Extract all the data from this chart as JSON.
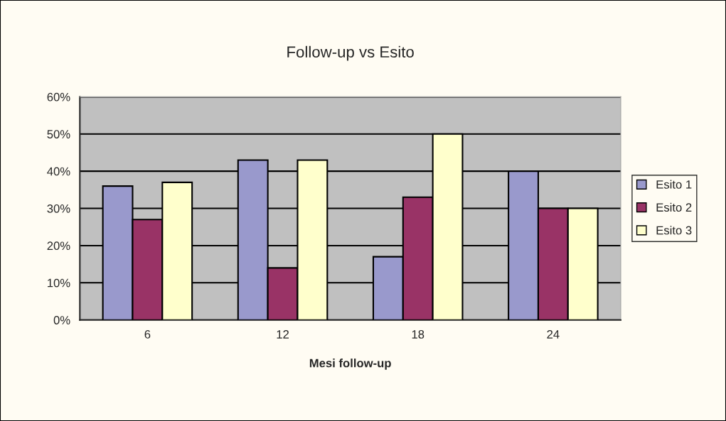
{
  "chart_data": {
    "type": "bar",
    "title": "Follow-up vs Esito",
    "xlabel": "Mesi follow-up",
    "categories": [
      "6",
      "12",
      "18",
      "24"
    ],
    "series": [
      {
        "name": "Esito 1",
        "color": "#9999cc",
        "values": [
          36,
          43,
          17,
          40
        ]
      },
      {
        "name": "Esito 2",
        "color": "#993366",
        "values": [
          27,
          14,
          33,
          30
        ]
      },
      {
        "name": "Esito 3",
        "color": "#ffffcc",
        "values": [
          37,
          43,
          50,
          30
        ]
      }
    ],
    "ylim": [
      0,
      60
    ],
    "yticks": [
      {
        "value": 0,
        "label": "0%"
      },
      {
        "value": 10,
        "label": "10%"
      },
      {
        "value": 20,
        "label": "20%"
      },
      {
        "value": 30,
        "label": "30%"
      },
      {
        "value": 40,
        "label": "40%"
      },
      {
        "value": 50,
        "label": "50%"
      },
      {
        "value": 60,
        "label": "60%"
      }
    ],
    "grid": "y",
    "legend": "right"
  }
}
